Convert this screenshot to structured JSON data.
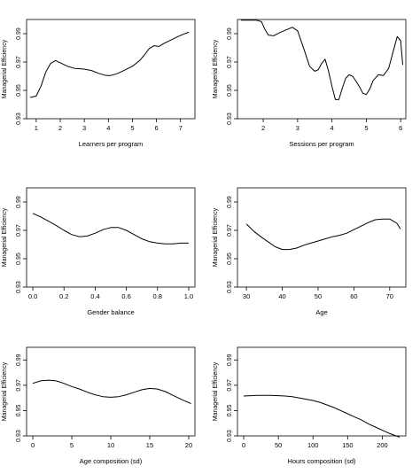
{
  "chart_data": [
    {
      "type": "line",
      "xlabel": "Learners per program",
      "ylabel": "Managerial Efficiency",
      "xlim": [
        0.6,
        7.6
      ],
      "ylim": [
        0.93,
        1.0
      ],
      "xticks": [
        1,
        2,
        3,
        4,
        5,
        6,
        7
      ],
      "yticks": [
        0.93,
        0.95,
        0.97,
        0.99
      ],
      "grid": false,
      "series": [
        {
          "x": [
            0.75,
            1.0,
            1.2,
            1.4,
            1.6,
            1.8,
            2.0,
            2.3,
            2.6,
            3.0,
            3.3,
            3.6,
            3.9,
            4.1,
            4.4,
            4.7,
            5.0,
            5.3,
            5.5,
            5.7,
            5.9,
            6.1,
            6.3,
            6.6,
            6.9,
            7.1,
            7.35
          ],
          "y": [
            0.945,
            0.946,
            0.953,
            0.963,
            0.969,
            0.971,
            0.9695,
            0.967,
            0.9655,
            0.965,
            0.964,
            0.962,
            0.9605,
            0.9605,
            0.962,
            0.9645,
            0.967,
            0.971,
            0.975,
            0.9795,
            0.9815,
            0.981,
            0.983,
            0.9855,
            0.988,
            0.9895,
            0.991
          ]
        }
      ]
    },
    {
      "type": "line",
      "xlabel": "Sessions per program",
      "ylabel": "Managerial Efficiency",
      "xlim": [
        1.25,
        6.15
      ],
      "ylim": [
        0.93,
        1.0
      ],
      "xticks": [
        2,
        3,
        4,
        5,
        6
      ],
      "yticks": [
        0.93,
        0.95,
        0.97,
        0.99
      ],
      "grid": false,
      "series": [
        {
          "x": [
            1.35,
            1.55,
            1.8,
            1.95,
            2.05,
            2.15,
            2.3,
            2.5,
            2.7,
            2.85,
            3.0,
            3.2,
            3.35,
            3.5,
            3.6,
            3.7,
            3.8,
            3.9,
            4.0,
            4.1,
            4.2,
            4.3,
            4.4,
            4.5,
            4.6,
            4.7,
            4.8,
            4.9,
            5.0,
            5.1,
            5.2,
            5.35,
            5.5,
            5.65,
            5.8,
            5.9,
            6.0,
            6.06
          ],
          "y": [
            0.9995,
            0.9995,
            0.9995,
            0.9985,
            0.993,
            0.989,
            0.9885,
            0.991,
            0.993,
            0.9945,
            0.992,
            0.978,
            0.967,
            0.9635,
            0.9645,
            0.969,
            0.972,
            0.9635,
            0.953,
            0.9435,
            0.9435,
            0.9515,
            0.9585,
            0.961,
            0.96,
            0.9565,
            0.9525,
            0.948,
            0.947,
            0.951,
            0.957,
            0.961,
            0.9605,
            0.9655,
            0.979,
            0.988,
            0.985,
            0.968
          ]
        }
      ]
    },
    {
      "type": "line",
      "xlabel": "Gender balance",
      "ylabel": "Managerial Efficiency",
      "xlim": [
        -0.04,
        1.04
      ],
      "ylim": [
        0.93,
        1.0
      ],
      "xticks": [
        "0.0",
        "0.2",
        "0.4",
        "0.6",
        "0.8",
        "1.0"
      ],
      "xtick_values": [
        0,
        0.2,
        0.4,
        0.6,
        0.8,
        1.0
      ],
      "yticks": [
        0.93,
        0.95,
        0.97,
        0.99
      ],
      "grid": false,
      "series": [
        {
          "x": [
            0.0,
            0.05,
            0.1,
            0.15,
            0.2,
            0.25,
            0.3,
            0.35,
            0.4,
            0.45,
            0.5,
            0.55,
            0.6,
            0.65,
            0.7,
            0.75,
            0.8,
            0.85,
            0.9,
            0.95,
            1.0
          ],
          "y": [
            0.982,
            0.9795,
            0.9765,
            0.9735,
            0.97,
            0.967,
            0.9655,
            0.966,
            0.968,
            0.9705,
            0.972,
            0.972,
            0.97,
            0.967,
            0.964,
            0.962,
            0.961,
            0.9605,
            0.9605,
            0.961,
            0.961
          ]
        }
      ]
    },
    {
      "type": "line",
      "xlabel": "Age",
      "ylabel": "Managerial Efficiency",
      "xlim": [
        27.5,
        74.5
      ],
      "ylim": [
        0.93,
        1.0
      ],
      "xticks": [
        30,
        40,
        50,
        60,
        70
      ],
      "yticks": [
        0.93,
        0.95,
        0.97,
        0.99
      ],
      "grid": false,
      "series": [
        {
          "x": [
            30,
            32,
            34,
            36,
            38,
            40,
            42,
            44,
            46,
            48,
            50,
            52,
            54,
            56,
            58,
            60,
            62,
            64,
            66,
            68,
            70,
            72,
            73
          ],
          "y": [
            0.9745,
            0.9695,
            0.9655,
            0.962,
            0.9585,
            0.9565,
            0.9565,
            0.9575,
            0.9595,
            0.961,
            0.9625,
            0.964,
            0.9655,
            0.9665,
            0.968,
            0.9705,
            0.973,
            0.9755,
            0.9775,
            0.978,
            0.978,
            0.975,
            0.971
          ]
        }
      ]
    },
    {
      "type": "line",
      "xlabel": "Age composition (sd)",
      "ylabel": "Managerial Efficiency",
      "xlim": [
        -0.8,
        20.8
      ],
      "ylim": [
        0.93,
        1.0
      ],
      "xticks": [
        0,
        5,
        10,
        15,
        20
      ],
      "yticks": [
        0.93,
        0.95,
        0.97,
        0.99
      ],
      "grid": false,
      "series": [
        {
          "x": [
            0,
            1,
            2,
            3,
            4,
            5,
            6,
            7,
            8,
            9,
            10,
            11,
            12,
            13,
            14,
            15,
            16,
            17,
            18,
            19,
            20.3
          ],
          "y": [
            0.9715,
            0.9735,
            0.974,
            0.9735,
            0.9715,
            0.969,
            0.967,
            0.9645,
            0.9625,
            0.961,
            0.9605,
            0.961,
            0.9625,
            0.9645,
            0.9665,
            0.9675,
            0.967,
            0.965,
            0.962,
            0.959,
            0.9555
          ]
        }
      ]
    },
    {
      "type": "line",
      "xlabel": "Hours composition (sd)",
      "ylabel": "Managerial Efficiency",
      "xlim": [
        -9,
        234
      ],
      "ylim": [
        0.93,
        1.0
      ],
      "xticks": [
        0,
        50,
        100,
        150,
        200
      ],
      "yticks": [
        0.93,
        0.95,
        0.97,
        0.99
      ],
      "grid": false,
      "series": [
        {
          "x": [
            0,
            20,
            40,
            60,
            70,
            80,
            90,
            100,
            110,
            120,
            130,
            140,
            150,
            160,
            170,
            180,
            190,
            200,
            210,
            220,
            225
          ],
          "y": [
            0.9615,
            0.962,
            0.962,
            0.9615,
            0.961,
            0.96,
            0.959,
            0.958,
            0.9565,
            0.9545,
            0.9525,
            0.95,
            0.9475,
            0.945,
            0.9425,
            0.9395,
            0.937,
            0.9345,
            0.932,
            0.93,
            0.929
          ]
        }
      ]
    }
  ]
}
